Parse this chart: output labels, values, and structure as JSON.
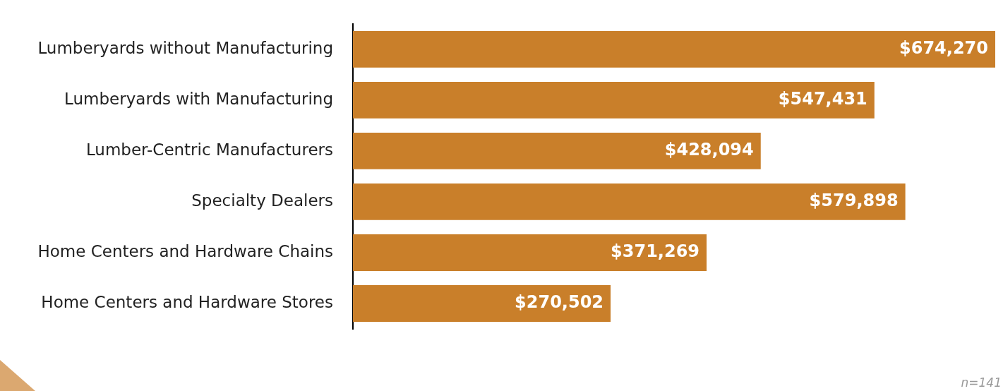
{
  "chart_data": {
    "type": "bar",
    "orientation": "horizontal",
    "categories": [
      "Lumberyards without Manufacturing",
      "Lumberyards with Manufacturing",
      "Lumber-Centric Manufacturers",
      "Specialty Dealers",
      "Home Centers and Hardware Chains",
      "Home Centers and Hardware Stores"
    ],
    "values": [
      674270,
      547431,
      428094,
      579898,
      371269,
      270502
    ],
    "color": "#c97f2a",
    "value_labels": [
      "$674,270",
      "$547,431",
      "$428,094",
      "$579,898",
      "$371,269",
      "$270,502"
    ],
    "annotations": [
      "n=141"
    ],
    "legend": false
  }
}
